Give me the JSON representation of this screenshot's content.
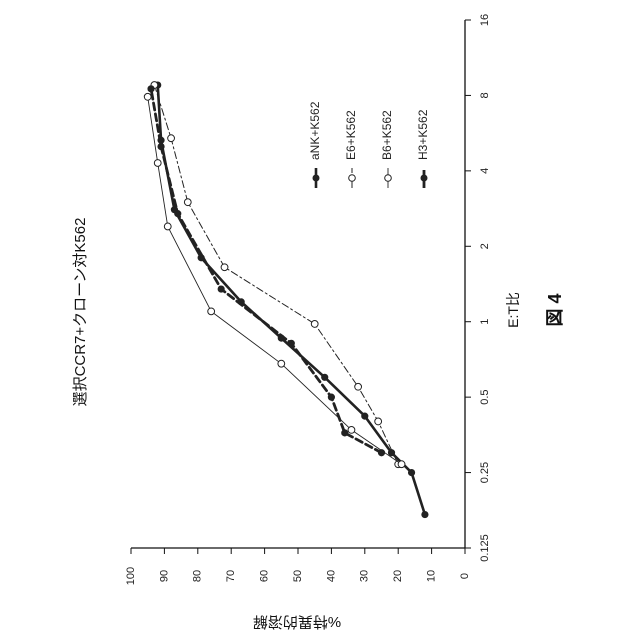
{
  "chart_data": {
    "type": "line",
    "title": "選択CCR7+クローン対K562",
    "xlabel": "E:T比",
    "ylabel": "%特異的溶解",
    "figure_label": "図 4",
    "x_scale": "log2",
    "xlim": [
      0.125,
      16
    ],
    "ylim": [
      0,
      100
    ],
    "x_ticks": [
      "0.125",
      "0.25",
      "0.5",
      "1",
      "2",
      "4",
      "8",
      "16"
    ],
    "y_ticks": [
      "0",
      "10",
      "20",
      "30",
      "40",
      "50",
      "60",
      "70",
      "80",
      "90",
      "100"
    ],
    "grid": false,
    "legend_position": "right",
    "series": [
      {
        "name": "aNK+K562",
        "style": "solid-heavy",
        "marker": "filled",
        "x": [
          0.17,
          0.25,
          0.3,
          0.42,
          0.6,
          0.86,
          1.2,
          1.8,
          2.8,
          5.3,
          8.8
        ],
        "y": [
          12,
          16,
          22,
          30,
          42,
          55,
          67,
          79,
          87,
          91,
          92
        ]
      },
      {
        "name": "E6+K562",
        "style": "dash-dot",
        "marker": "open",
        "x": [
          0.27,
          0.4,
          0.55,
          0.98,
          1.65,
          3.0,
          5.4,
          8.8
        ],
        "y": [
          20,
          26,
          32,
          45,
          72,
          83,
          88,
          93
        ]
      },
      {
        "name": "B6+K562",
        "style": "solid-thin",
        "marker": "open",
        "x": [
          0.27,
          0.37,
          0.68,
          1.1,
          2.4,
          4.3,
          7.9
        ],
        "y": [
          19,
          34,
          55,
          76,
          89,
          92,
          95
        ]
      },
      {
        "name": "H3+K562",
        "style": "dashed-heavy",
        "marker": "filled",
        "x": [
          0.3,
          0.36,
          0.5,
          0.82,
          1.35,
          2.7,
          5.0,
          8.5
        ],
        "y": [
          25,
          36,
          40,
          52,
          73,
          86,
          91,
          94
        ]
      }
    ]
  }
}
